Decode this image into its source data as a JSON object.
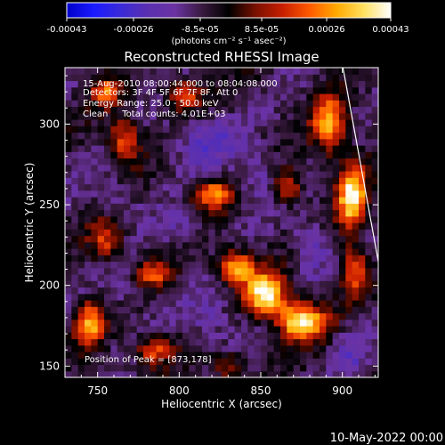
{
  "colorbar": {
    "tick_labels": [
      "-0.00043",
      "-0.00026",
      "-8.5e-05",
      "8.5e-05",
      "0.00026",
      "0.00043"
    ],
    "unit_label": "(photons cm⁻² s⁻¹ asec⁻²)",
    "range": [
      -0.00043,
      0.00043
    ]
  },
  "annotations": {
    "line1": "15-Aug-2010 08:00:44.000 to 08:04:08.000",
    "line2": "Detectors: 3F 4F 5F 6F 7F 8F, Att 0",
    "line3": "Energy Range: 25.0 - 50.0 keV",
    "line4": "Clean     Total counts: 4.01E+03",
    "peak": "Position of Peak = [873,178]"
  },
  "footer": {
    "date": "10-May-2022 00:00"
  },
  "colors": {
    "background": "#000000",
    "colormap": [
      "#0000c8",
      "#1a1aff",
      "#3a2ad8",
      "#5a2fb0",
      "#6b33a3",
      "#3a1a40",
      "#000000",
      "#7a1000",
      "#c81e00",
      "#ff5a00",
      "#ffaa00",
      "#ffe060",
      "#ffffff"
    ]
  },
  "chart_data": {
    "type": "heatmap",
    "title": "Reconstructed RHESSI Image",
    "xlabel": "Heliocentric X (arcsec)",
    "ylabel": "Heliocentric Y (arcsec)",
    "xlim": [
      730,
      922
    ],
    "ylim": [
      143,
      335
    ],
    "x_ticks": [
      "750",
      "800",
      "850",
      "900"
    ],
    "y_ticks": [
      "150",
      "200",
      "250",
      "300"
    ],
    "x_tick_values": [
      750,
      800,
      850,
      900
    ],
    "y_tick_values": [
      150,
      200,
      250,
      300
    ],
    "peak": [
      873,
      178
    ],
    "limb_line": [
      [
        899,
        335
      ],
      [
        922,
        215
      ]
    ],
    "bright_sources": [
      {
        "x": 853,
        "y": 195,
        "sx": 9,
        "sy": 9,
        "amp": 1.0
      },
      {
        "x": 875,
        "y": 178,
        "sx": 10,
        "sy": 8,
        "amp": 1.05
      },
      {
        "x": 835,
        "y": 212,
        "sx": 8,
        "sy": 7,
        "amp": 0.8
      },
      {
        "x": 906,
        "y": 255,
        "sx": 6,
        "sy": 14,
        "amp": 1.0
      },
      {
        "x": 892,
        "y": 300,
        "sx": 7,
        "sy": 12,
        "amp": 0.8
      },
      {
        "x": 866,
        "y": 262,
        "sx": 6,
        "sy": 7,
        "amp": 0.6
      },
      {
        "x": 803,
        "y": 318,
        "sx": 8,
        "sy": 7,
        "amp": 0.55
      },
      {
        "x": 766,
        "y": 290,
        "sx": 7,
        "sy": 10,
        "amp": 0.6
      },
      {
        "x": 820,
        "y": 257,
        "sx": 9,
        "sy": 6,
        "amp": 0.7
      },
      {
        "x": 755,
        "y": 228,
        "sx": 7,
        "sy": 9,
        "amp": 0.5
      },
      {
        "x": 785,
        "y": 207,
        "sx": 8,
        "sy": 6,
        "amp": 0.5
      },
      {
        "x": 745,
        "y": 176,
        "sx": 6,
        "sy": 10,
        "amp": 0.7
      },
      {
        "x": 785,
        "y": 160,
        "sx": 8,
        "sy": 6,
        "amp": 0.55
      },
      {
        "x": 830,
        "y": 150,
        "sx": 7,
        "sy": 6,
        "amp": 0.4
      },
      {
        "x": 755,
        "y": 320,
        "sx": 6,
        "sy": 6,
        "amp": 0.6
      },
      {
        "x": 907,
        "y": 210,
        "sx": 5,
        "sy": 10,
        "amp": 0.6
      }
    ],
    "dim_regions": [
      {
        "x": 815,
        "y": 290,
        "sx": 14,
        "sy": 12,
        "amp": 0.9
      },
      {
        "x": 848,
        "y": 268,
        "sx": 9,
        "sy": 12,
        "amp": 0.8
      },
      {
        "x": 880,
        "y": 226,
        "sx": 8,
        "sy": 12,
        "amp": 0.8
      },
      {
        "x": 820,
        "y": 180,
        "sx": 12,
        "sy": 12,
        "amp": 0.7
      },
      {
        "x": 760,
        "y": 255,
        "sx": 9,
        "sy": 9,
        "amp": 0.6
      },
      {
        "x": 800,
        "y": 235,
        "sx": 10,
        "sy": 8,
        "amp": 0.6
      },
      {
        "x": 765,
        "y": 200,
        "sx": 8,
        "sy": 8,
        "amp": 0.6
      },
      {
        "x": 905,
        "y": 160,
        "sx": 8,
        "sy": 10,
        "amp": 0.7
      }
    ]
  }
}
